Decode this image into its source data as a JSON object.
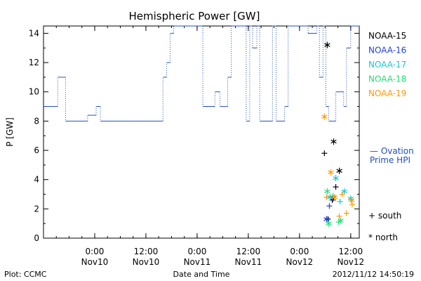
{
  "chart_data": {
    "type": "line",
    "title": "Hemispheric Power [GW]",
    "xlabel": "Date and Time",
    "ylabel": "P [GW]",
    "ylim": [
      0,
      14.5
    ],
    "yticks": [
      0,
      2,
      4,
      6,
      8,
      10,
      12,
      14
    ],
    "xlim": [
      "2012-11-09 12:00",
      "2012-11-12 14:00"
    ],
    "xticks": [
      {
        "t": "2012-11-10 00:00",
        "time": "0:00",
        "date": "Nov10"
      },
      {
        "t": "2012-11-10 12:00",
        "time": "12:00",
        "date": "Nov10"
      },
      {
        "t": "2012-11-11 00:00",
        "time": "0:00",
        "date": "Nov11"
      },
      {
        "t": "2012-11-11 12:00",
        "time": "12:00",
        "date": "Nov11"
      },
      {
        "t": "2012-11-12 00:00",
        "time": "0:00",
        "date": "Nov12"
      },
      {
        "t": "2012-11-12 12:00",
        "time": "12:00",
        "date": "Nov12"
      }
    ],
    "ovation": {
      "label_line1": "— Ovation",
      "label_line2": "Prime HPI",
      "color": "#1f4fbf",
      "points": [
        [
          "2012-11-09 12:00",
          9
        ],
        [
          "2012-11-09 15:20",
          9
        ],
        [
          "2012-11-09 15:20",
          11
        ],
        [
          "2012-11-09 17:10",
          11
        ],
        [
          "2012-11-09 17:10",
          8
        ],
        [
          "2012-11-09 22:20",
          8
        ],
        [
          "2012-11-09 22:20",
          8.4
        ],
        [
          "2012-11-10 00:20",
          8.4
        ],
        [
          "2012-11-10 00:20",
          9
        ],
        [
          "2012-11-10 01:20",
          9
        ],
        [
          "2012-11-10 01:20",
          8
        ],
        [
          "2012-11-10 08:00",
          8
        ],
        [
          "2012-11-10 16:00",
          8
        ],
        [
          "2012-11-10 16:00",
          11
        ],
        [
          "2012-11-10 16:50",
          11
        ],
        [
          "2012-11-10 16:50",
          12
        ],
        [
          "2012-11-10 17:40",
          12
        ],
        [
          "2012-11-10 17:40",
          14
        ],
        [
          "2012-11-10 18:30",
          14
        ],
        [
          "2012-11-10 18:30",
          14.5
        ],
        [
          "2012-11-11 01:20",
          14.5
        ],
        [
          "2012-11-11 01:20",
          9
        ],
        [
          "2012-11-11 04:10",
          9
        ],
        [
          "2012-11-11 04:10",
          10
        ],
        [
          "2012-11-11 05:20",
          10
        ],
        [
          "2012-11-11 05:20",
          9
        ],
        [
          "2012-11-11 07:10",
          9
        ],
        [
          "2012-11-11 07:10",
          11
        ],
        [
          "2012-11-11 08:00",
          11
        ],
        [
          "2012-11-11 08:00",
          14.5
        ],
        [
          "2012-11-11 11:30",
          14.5
        ],
        [
          "2012-11-11 11:30",
          8
        ],
        [
          "2012-11-11 12:20",
          8
        ],
        [
          "2012-11-11 12:20",
          14.5
        ],
        [
          "2012-11-11 13:00",
          14.5
        ],
        [
          "2012-11-11 13:00",
          13
        ],
        [
          "2012-11-11 14:00",
          13
        ],
        [
          "2012-11-11 14:00",
          14.5
        ],
        [
          "2012-11-11 14:40",
          14.5
        ],
        [
          "2012-11-11 14:40",
          8
        ],
        [
          "2012-11-11 17:40",
          8
        ],
        [
          "2012-11-11 17:40",
          14.5
        ],
        [
          "2012-11-11 18:30",
          14.5
        ],
        [
          "2012-11-11 18:30",
          8
        ],
        [
          "2012-11-11 20:30",
          8
        ],
        [
          "2012-11-11 20:30",
          9
        ],
        [
          "2012-11-11 21:20",
          9
        ],
        [
          "2012-11-11 21:20",
          14.5
        ],
        [
          "2012-11-12 02:00",
          14.5
        ],
        [
          "2012-11-12 02:00",
          14
        ],
        [
          "2012-11-12 04:00",
          14
        ],
        [
          "2012-11-12 04:00",
          14.5
        ],
        [
          "2012-11-12 04:40",
          14.5
        ],
        [
          "2012-11-12 04:40",
          11
        ],
        [
          "2012-11-12 05:30",
          11
        ],
        [
          "2012-11-12 05:30",
          14.5
        ],
        [
          "2012-11-12 06:10",
          14.5
        ],
        [
          "2012-11-12 06:10",
          9
        ],
        [
          "2012-11-12 06:50",
          9
        ],
        [
          "2012-11-12 06:50",
          8
        ],
        [
          "2012-11-12 08:30",
          8
        ],
        [
          "2012-11-12 08:30",
          10
        ],
        [
          "2012-11-12 10:20",
          10
        ],
        [
          "2012-11-12 10:20",
          9
        ],
        [
          "2012-11-12 11:00",
          9
        ],
        [
          "2012-11-12 11:00",
          13
        ],
        [
          "2012-11-12 12:00",
          13
        ],
        [
          "2012-11-12 12:00",
          14.5
        ],
        [
          "2012-11-12 14:00",
          14.5
        ]
      ]
    },
    "satellites": [
      {
        "name": "NOAA-15",
        "color": "#000000",
        "north": [
          [
            "2012-11-12 06:30",
            13.2
          ],
          [
            "2012-11-12 08:00",
            6.6
          ],
          [
            "2012-11-12 09:20",
            4.6
          ],
          [
            "2012-11-12 07:50",
            2.7
          ]
        ],
        "south": [
          [
            "2012-11-12 05:50",
            5.8
          ],
          [
            "2012-11-12 08:30",
            3.5
          ],
          [
            "2012-11-12 07:40",
            2.6
          ],
          [
            "2012-11-12 06:40",
            1.3
          ]
        ]
      },
      {
        "name": "NOAA-16",
        "color": "#1f3fd6",
        "north": [
          [
            "2012-11-12 06:20",
            1.3
          ],
          [
            "2012-11-12 07:40",
            2.7
          ]
        ],
        "south": [
          [
            "2012-11-12 07:00",
            2.2
          ]
        ]
      },
      {
        "name": "NOAA-17",
        "color": "#18c6d6",
        "north": [
          [
            "2012-11-12 08:30",
            4.1
          ],
          [
            "2012-11-12 07:10",
            2.8
          ],
          [
            "2012-11-12 10:30",
            3.2
          ],
          [
            "2012-11-12 12:00",
            2.7
          ]
        ],
        "south": [
          [
            "2012-11-12 09:30",
            2.5
          ]
        ]
      },
      {
        "name": "NOAA-18",
        "color": "#22dd77",
        "north": [
          [
            "2012-11-12 06:30",
            3.2
          ],
          [
            "2012-11-12 06:50",
            1.0
          ],
          [
            "2012-11-12 09:40",
            1.2
          ]
        ],
        "south": [
          [
            "2012-11-12 07:50",
            2.9
          ],
          [
            "2012-11-12 09:10",
            1.1
          ]
        ]
      },
      {
        "name": "NOAA-19",
        "color": "#ff9900",
        "north": [
          [
            "2012-11-12 05:50",
            8.3
          ],
          [
            "2012-11-12 07:20",
            4.5
          ],
          [
            "2012-11-12 08:10",
            2.8
          ],
          [
            "2012-11-12 12:10",
            2.6
          ]
        ],
        "south": [
          [
            "2012-11-12 06:20",
            2.8
          ],
          [
            "2012-11-12 09:20",
            1.5
          ],
          [
            "2012-11-12 11:00",
            1.7
          ],
          [
            "2012-11-12 10:00",
            3.0
          ],
          [
            "2012-11-12 12:20",
            2.3
          ]
        ]
      }
    ]
  },
  "legend": {
    "south": "+ south",
    "north": "* north"
  },
  "footer": {
    "left": "Plot: CCMC",
    "center": "Date and Time",
    "right": "2012/11/12 14:50:19"
  }
}
